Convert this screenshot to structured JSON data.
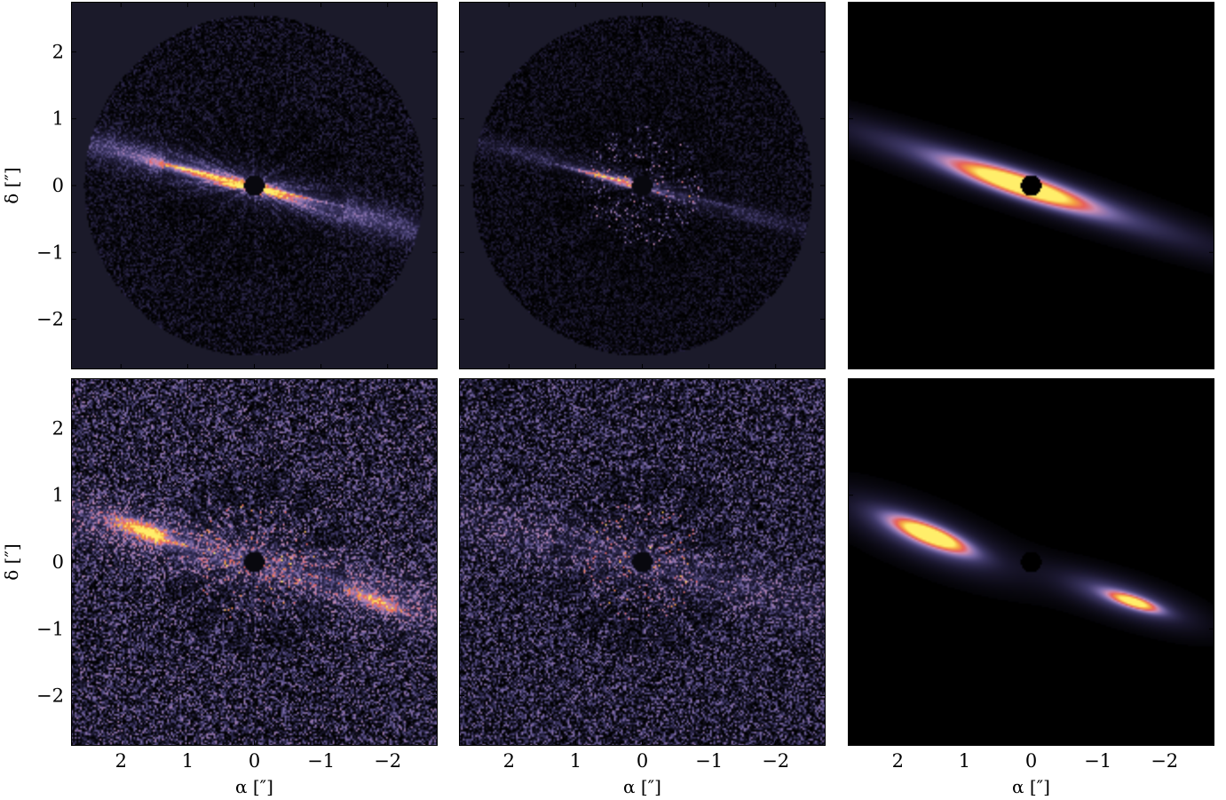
{
  "chart_data": {
    "type": "heatmap",
    "layout": "2x3 image grid",
    "colormap": [
      "#000000",
      "#1b1830",
      "#403a6a",
      "#7a6aa8",
      "#c78cb6",
      "#e8605a",
      "#f5a342",
      "#ffee6a"
    ],
    "panel_background_obs": "#1b1a2a",
    "panel_background_model": "#000000",
    "x_axis": {
      "label": "α [″]",
      "range": [
        2.75,
        -2.75
      ],
      "ticks": [
        2,
        1,
        0,
        -1,
        -2
      ],
      "tick_labels": [
        "2",
        "1",
        "0",
        "−1",
        "−2"
      ]
    },
    "y_axis": {
      "label": "δ [″]",
      "range": [
        -2.75,
        2.75
      ],
      "ticks": [
        2,
        1,
        0,
        -1,
        -2
      ],
      "tick_labels": [
        "2",
        "1",
        "0",
        "−1",
        "−2"
      ]
    },
    "panels": [
      {
        "row": 0,
        "col": 0,
        "kind": "observation",
        "mask_radius": 2.55,
        "noise": 0.07,
        "inner_mask": 0.15,
        "radial_spikes": true,
        "components": [
          {
            "pa_deg": 15,
            "semi_major": 2.8,
            "semi_minor": 0.18,
            "offset_x": 0.1,
            "offset_y": 0.0,
            "peak": 0.55,
            "falloff": 1.6
          },
          {
            "pa_deg": 15,
            "semi_major": 0.9,
            "semi_minor": 0.07,
            "offset_x": 0.55,
            "offset_y": 0.1,
            "peak": 0.95,
            "falloff": 1.0
          },
          {
            "pa_deg": 15,
            "semi_major": 0.5,
            "semi_minor": 0.05,
            "offset_x": -0.25,
            "offset_y": -0.07,
            "peak": 0.9,
            "falloff": 1.0
          }
        ]
      },
      {
        "row": 0,
        "col": 1,
        "kind": "residual",
        "mask_radius": 2.55,
        "noise": 0.06,
        "inner_mask": 0.15,
        "radial_spikes": true,
        "components": [
          {
            "pa_deg": 15,
            "semi_major": 2.6,
            "semi_minor": 0.1,
            "offset_x": 0.0,
            "offset_y": 0.0,
            "peak": 0.3,
            "falloff": 1.6
          },
          {
            "pa_deg": 15,
            "semi_major": 0.55,
            "semi_minor": 0.05,
            "offset_x": 0.4,
            "offset_y": 0.08,
            "peak": 0.85,
            "falloff": 1.0
          }
        ]
      },
      {
        "row": 0,
        "col": 2,
        "kind": "model",
        "mask_radius": null,
        "noise": 0.0,
        "inner_mask": 0.15,
        "radial_spikes": false,
        "components": [
          {
            "pa_deg": 18,
            "semi_major": 2.9,
            "semi_minor": 0.28,
            "offset_x": 0.1,
            "offset_y": 0.0,
            "peak": 0.45,
            "falloff": 1.2
          },
          {
            "pa_deg": 18,
            "semi_major": 1.05,
            "semi_minor": 0.17,
            "offset_x": 0.15,
            "offset_y": 0.0,
            "peak": 1.0,
            "falloff": 1.0
          }
        ]
      },
      {
        "row": 1,
        "col": 0,
        "kind": "observation",
        "mask_radius": null,
        "noise": 0.16,
        "inner_mask": 0.15,
        "radial_spikes": true,
        "components": [
          {
            "pa_deg": 14,
            "semi_major": 3.0,
            "semi_minor": 0.3,
            "offset_x": 0.0,
            "offset_y": 0.0,
            "peak": 0.35,
            "falloff": 1.6
          },
          {
            "pa_deg": 20,
            "semi_major": 0.55,
            "semi_minor": 0.12,
            "offset_x": 1.6,
            "offset_y": 0.45,
            "peak": 0.85,
            "falloff": 1.0
          },
          {
            "pa_deg": 20,
            "semi_major": 0.45,
            "semi_minor": 0.1,
            "offset_x": -1.85,
            "offset_y": -0.6,
            "peak": 0.55,
            "falloff": 1.0
          }
        ]
      },
      {
        "row": 1,
        "col": 1,
        "kind": "residual",
        "mask_radius": null,
        "noise": 0.15,
        "inner_mask": 0.15,
        "radial_spikes": true,
        "components": [
          {
            "pa_deg": 14,
            "semi_major": 3.0,
            "semi_minor": 0.3,
            "offset_x": 0.0,
            "offset_y": 0.0,
            "peak": 0.2,
            "falloff": 1.6
          }
        ]
      },
      {
        "row": 1,
        "col": 2,
        "kind": "model",
        "mask_radius": null,
        "noise": 0.0,
        "inner_mask": 0.15,
        "radial_spikes": false,
        "components": [
          {
            "pa_deg": 22,
            "semi_major": 1.15,
            "semi_minor": 0.32,
            "offset_x": 1.6,
            "offset_y": 0.4,
            "peak": 0.5,
            "falloff": 1.3
          },
          {
            "pa_deg": 22,
            "semi_major": 0.6,
            "semi_minor": 0.14,
            "offset_x": 1.5,
            "offset_y": 0.4,
            "peak": 1.0,
            "falloff": 1.0
          },
          {
            "pa_deg": 18,
            "semi_major": 1.0,
            "semi_minor": 0.25,
            "offset_x": -1.4,
            "offset_y": -0.55,
            "peak": 0.45,
            "falloff": 1.3
          },
          {
            "pa_deg": 18,
            "semi_major": 0.4,
            "semi_minor": 0.09,
            "offset_x": -1.55,
            "offset_y": -0.6,
            "peak": 0.8,
            "falloff": 1.0
          }
        ]
      }
    ]
  }
}
